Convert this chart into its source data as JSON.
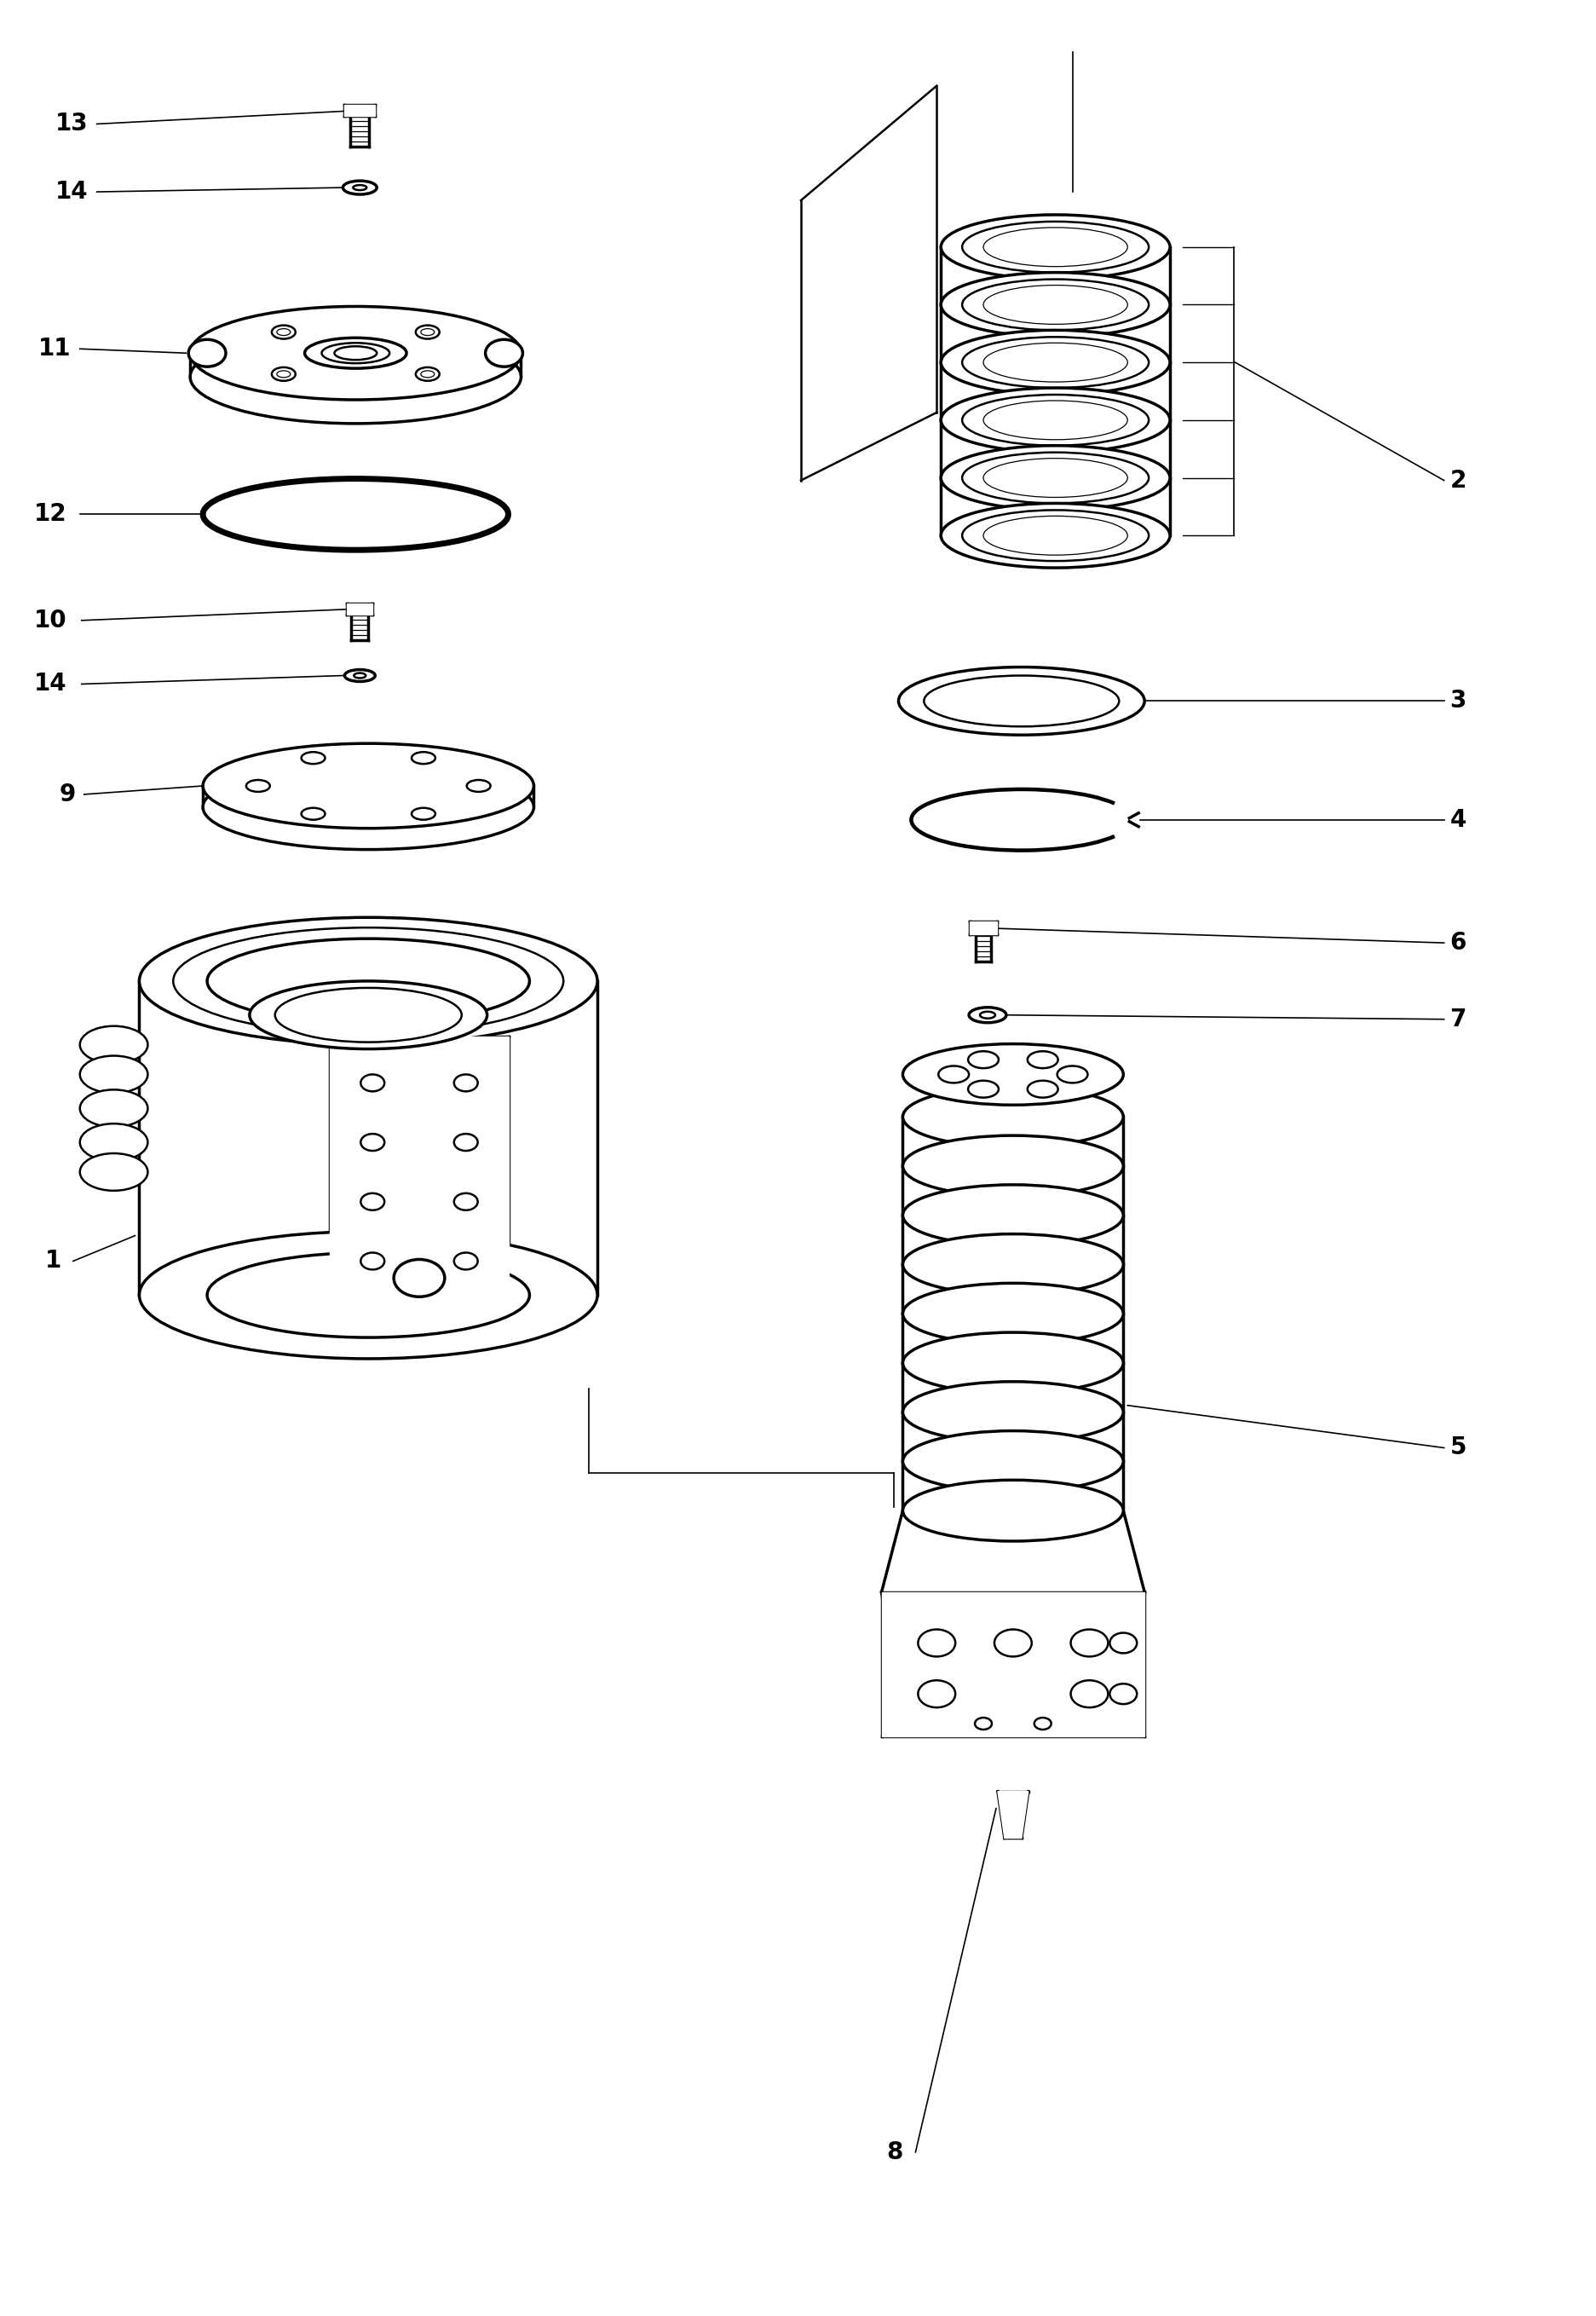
{
  "background_color": "#ffffff",
  "line_color": "#000000",
  "lw": 1.8,
  "lw_thin": 0.9,
  "lw_thick": 2.5,
  "fig_width": 18.73,
  "fig_height": 27.17,
  "fontsize": 18,
  "fontsize_label": 20
}
